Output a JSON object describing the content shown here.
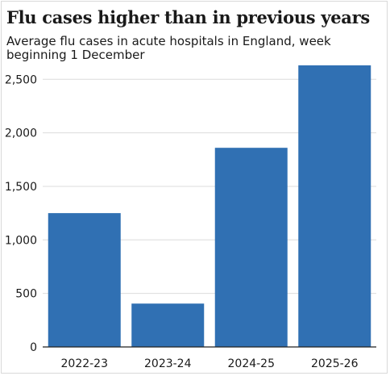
{
  "chart_data": {
    "type": "bar",
    "title": "Flu cases higher than in previous years",
    "subtitle": "Average flu cases in acute hospitals in England, week beginning 1 December",
    "categories": [
      "2022-23",
      "2023-24",
      "2024-25",
      "2025-26"
    ],
    "values": [
      1250,
      405,
      1860,
      2630
    ],
    "yticks": [
      0,
      500,
      1000,
      1500,
      2000,
      2500
    ],
    "ytick_labels": [
      "0",
      "500",
      "1,000",
      "1,500",
      "2,000",
      "2,500"
    ],
    "ylim": [
      0,
      2630
    ],
    "grid": true,
    "bar_color": "#3070b3",
    "grid_color": "#dcdcdc",
    "axis_color": "#222222"
  }
}
